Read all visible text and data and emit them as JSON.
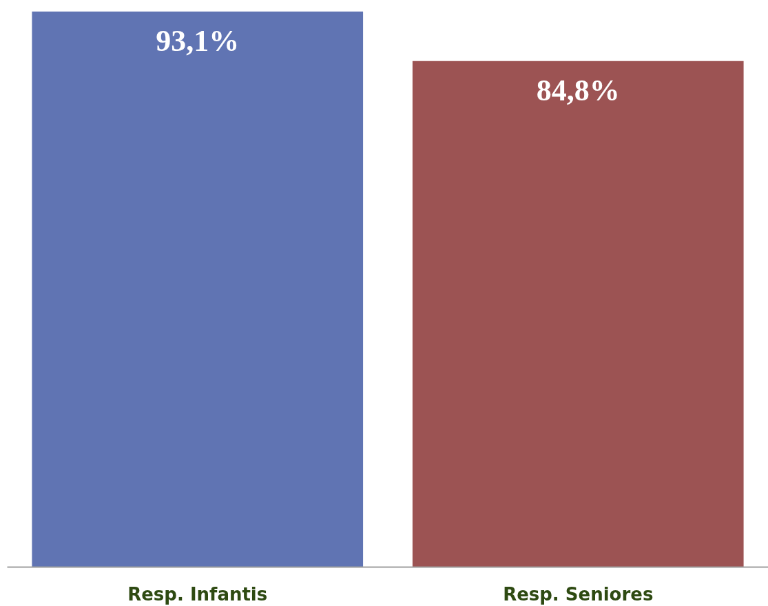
{
  "chart_data": {
    "type": "bar",
    "categories": [
      "Resp. Infantis",
      "Resp. Seniores"
    ],
    "values": [
      93.1,
      84.8
    ],
    "colors": [
      "#6074b3",
      "#9c5353"
    ],
    "value_labels": [
      "93,1%",
      "84,8%"
    ],
    "grid": false
  }
}
